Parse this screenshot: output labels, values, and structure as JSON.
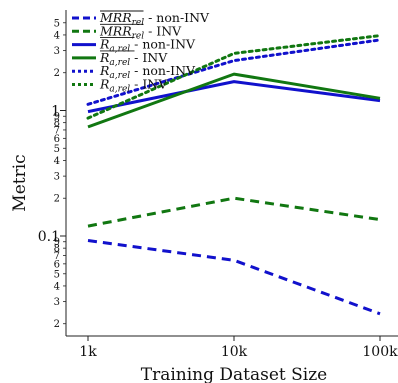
{
  "chart_data": {
    "type": "line",
    "xscale": "log",
    "yscale": "log",
    "xlabel": "Training Dataset Size",
    "ylabel": "Metric",
    "categories": [
      "1k",
      "10k",
      "100k"
    ],
    "x": [
      1000,
      10000,
      100000
    ],
    "ylim": [
      0.017,
      5.6
    ],
    "y_major_ticks": [
      {
        "value": 1,
        "label": "1"
      },
      {
        "value": 0.1,
        "label": "0.1"
      }
    ],
    "y_minor_ticks": [
      {
        "value": 5,
        "label": "5"
      },
      {
        "value": 4,
        "label": "4"
      },
      {
        "value": 3,
        "label": "3"
      },
      {
        "value": 2,
        "label": "2"
      },
      {
        "value": 0.9,
        "label": "9"
      },
      {
        "value": 0.8,
        "label": "8"
      },
      {
        "value": 0.7,
        "label": "7"
      },
      {
        "value": 0.6,
        "label": "6"
      },
      {
        "value": 0.5,
        "label": "5"
      },
      {
        "value": 0.4,
        "label": "4"
      },
      {
        "value": 0.3,
        "label": "3"
      },
      {
        "value": 0.2,
        "label": "2"
      },
      {
        "value": 0.09,
        "label": "9"
      },
      {
        "value": 0.08,
        "label": "8"
      },
      {
        "value": 0.07,
        "label": "7"
      },
      {
        "value": 0.06,
        "label": "6"
      },
      {
        "value": 0.05,
        "label": "5"
      },
      {
        "value": 0.04,
        "label": "4"
      },
      {
        "value": 0.03,
        "label": "3"
      },
      {
        "value": 0.02,
        "label": "2"
      }
    ],
    "legend_position": "top-left",
    "series": [
      {
        "name": "MRR_rel - non-INV",
        "color": "#1111cc",
        "style": "dashed",
        "values": [
          0.092,
          0.064,
          0.024
        ]
      },
      {
        "name": "MRR_rel - INV",
        "color": "#117711",
        "style": "dashed",
        "values": [
          0.12,
          0.2,
          0.135
        ]
      },
      {
        "name": "R_a,rel - non-INV",
        "color": "#1111cc",
        "style": "solid",
        "values": [
          0.98,
          1.7,
          1.2
        ]
      },
      {
        "name": "R_a,rel - INV",
        "color": "#117711",
        "style": "solid",
        "values": [
          0.74,
          1.95,
          1.25
        ]
      },
      {
        "name": "R_a,rel - non-INV",
        "color": "#1111cc",
        "style": "dotted",
        "values": [
          1.12,
          2.5,
          3.65
        ]
      },
      {
        "name": "R_a,rel - INV",
        "color": "#117711",
        "style": "dotted",
        "values": [
          0.87,
          2.85,
          3.95
        ]
      }
    ],
    "legend": [
      {
        "sym": "MRR",
        "sub": "rel",
        "over": true,
        "desc": " - non-INV"
      },
      {
        "sym": "MRR",
        "sub": "rel",
        "over": true,
        "desc": " - INV"
      },
      {
        "sym": "R",
        "sub": "a,rel",
        "over": true,
        "desc": " - non-INV"
      },
      {
        "sym": "R",
        "sub": "a,rel",
        "over": true,
        "desc": " - INV"
      },
      {
        "sym": "R",
        "sub": "a,rel",
        "over": false,
        "desc": " - non-INV"
      },
      {
        "sym": "R",
        "sub": "a,rel",
        "over": false,
        "desc": " - INV"
      }
    ]
  }
}
